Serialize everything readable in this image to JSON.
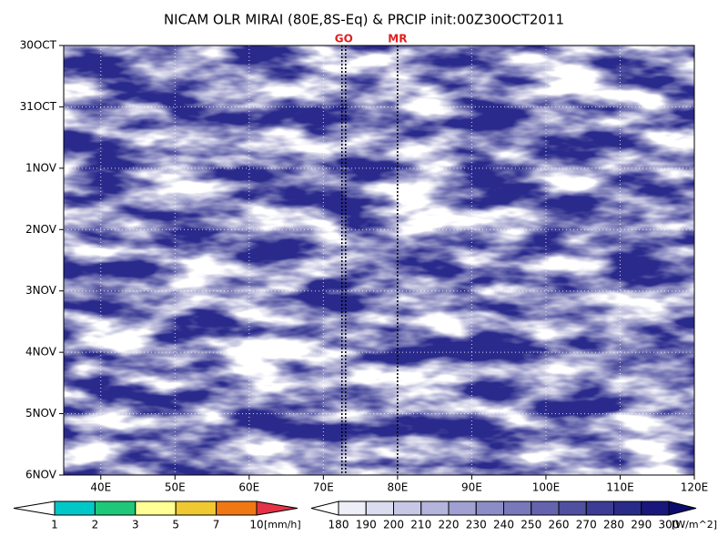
{
  "chart_data": {
    "type": "hovmoller",
    "title": "NICAM OLR MIRAI (80E,8S-Eq) & PRCIP init:00Z30OCT2011",
    "xlim": [
      35,
      120
    ],
    "xticks": [
      {
        "value": 40,
        "label": "40E"
      },
      {
        "value": 50,
        "label": "50E"
      },
      {
        "value": 60,
        "label": "60E"
      },
      {
        "value": 70,
        "label": "70E"
      },
      {
        "value": 80,
        "label": "80E"
      },
      {
        "value": 90,
        "label": "90E"
      },
      {
        "value": 100,
        "label": "100E"
      },
      {
        "value": 110,
        "label": "110E"
      },
      {
        "value": 120,
        "label": "120E"
      }
    ],
    "categories": [
      "30OCT",
      "31OCT",
      "1NOV",
      "2NOV",
      "3NOV",
      "4NOV",
      "5NOV",
      "6NOV"
    ],
    "grid": true,
    "markers": [
      {
        "label": "GO",
        "x": [
          72.5,
          73
        ]
      },
      {
        "label": "MR",
        "x": [
          80
        ]
      }
    ],
    "colorbars": [
      {
        "name": "precip",
        "levels": [
          1,
          2,
          3,
          5,
          7,
          10
        ],
        "unit": "[mm/h]",
        "colors": [
          "#ffffff",
          "#00c8c8",
          "#1ec878",
          "#ffff96",
          "#f0c832",
          "#f07814",
          "#e63246"
        ]
      },
      {
        "name": "olr",
        "levels": [
          180,
          190,
          200,
          210,
          220,
          230,
          240,
          250,
          260,
          270,
          280,
          290,
          300
        ],
        "unit": "[W/m^2]",
        "colors": [
          "#ffffff",
          "#eeeef8",
          "#dcdcf0",
          "#c8c8e6",
          "#b4b4dc",
          "#a0a0d2",
          "#8c8cc6",
          "#7878ba",
          "#6464ae",
          "#5050a0",
          "#3c3c94",
          "#2a2a88",
          "#18187c",
          "#0c0c6e"
        ]
      }
    ]
  }
}
